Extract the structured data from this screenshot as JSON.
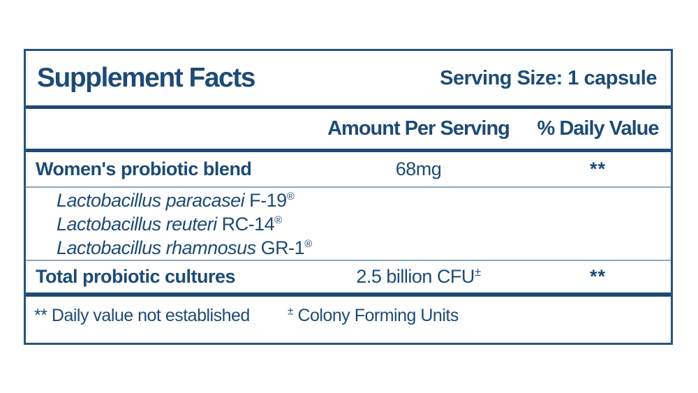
{
  "colors": {
    "text": "#1d4b75",
    "outer_border": "#27547c",
    "thick_divider": "#1d4b75",
    "thin_divider": "#8fa6b8",
    "background": "#ffffff"
  },
  "label": {
    "title": "Supplement Facts",
    "serving_size": "Serving Size: 1 capsule",
    "columns": {
      "amount": "Amount Per Serving",
      "daily_value": "% Daily Value"
    },
    "rows": [
      {
        "name": "Women's probiotic blend",
        "amount": "68mg",
        "daily_value": "**"
      },
      {
        "name": "Total probiotic cultures",
        "amount": "2.5 billion CFU",
        "amount_mark": "±",
        "daily_value": "**"
      }
    ],
    "ingredients": [
      {
        "latin": "Lactobacillus paracasei",
        "strain": "F-19",
        "mark": "®"
      },
      {
        "latin": "Lactobacillus reuteri",
        "strain": "RC-14",
        "mark": "®"
      },
      {
        "latin": "Lactobacillus rhamnosus",
        "strain": "GR-1",
        "mark": "®"
      }
    ],
    "footnotes": {
      "daily_value_note": "** Daily value not established",
      "cfu_mark": "±",
      "cfu_note": "Colony Forming Units"
    }
  }
}
